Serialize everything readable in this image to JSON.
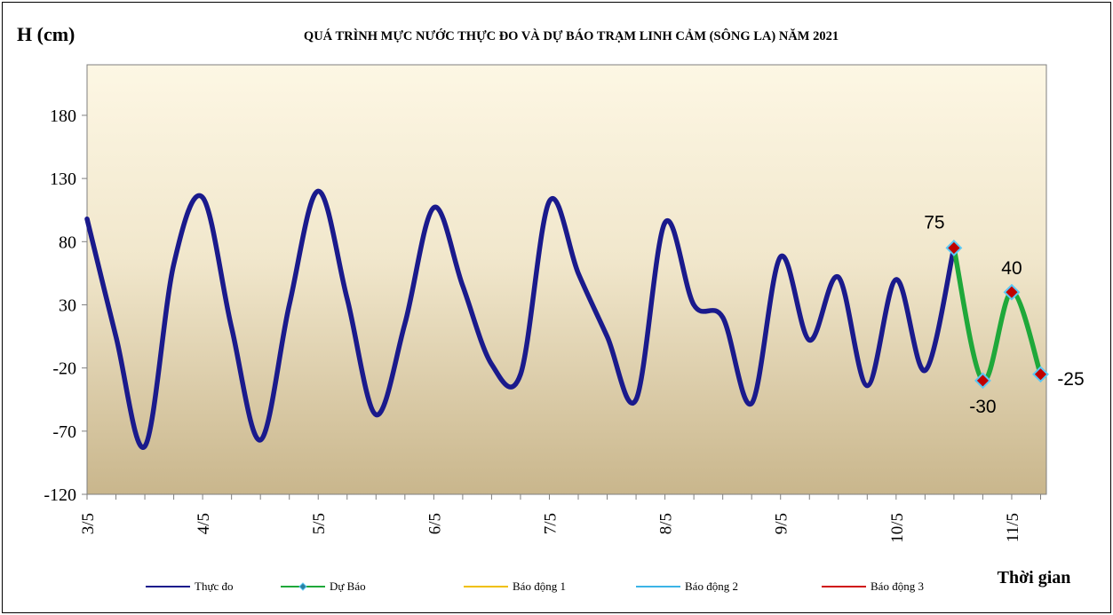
{
  "chart_data": {
    "type": "line",
    "title": "QUÁ TRÌNH  MỰC NƯỚC THỰC ĐO VÀ DỰ BÁO TRẠM  LINH  CẢM (SÔNG LA) NĂM 2021",
    "ylabel": "H (cm)",
    "xlabel": "Thời gian",
    "ylim": [
      -120,
      220
    ],
    "yticks": [
      -120,
      -70,
      -20,
      30,
      80,
      130,
      180
    ],
    "xlim": [
      3,
      11.3
    ],
    "xticks": [
      {
        "x": 3,
        "label": "3/5"
      },
      {
        "x": 4,
        "label": "4/5"
      },
      {
        "x": 5,
        "label": "5/5"
      },
      {
        "x": 6,
        "label": "6/5"
      },
      {
        "x": 7,
        "label": "7/5"
      },
      {
        "x": 8,
        "label": "8/5"
      },
      {
        "x": 9,
        "label": "9/5"
      },
      {
        "x": 10,
        "label": "10/5"
      },
      {
        "x": 11,
        "label": "11/5"
      }
    ],
    "grid": false,
    "legend_position": "bottom",
    "series": [
      {
        "name": "Thực đo",
        "color": "#1a1a8c",
        "points": [
          [
            3.0,
            98
          ],
          [
            3.25,
            5
          ],
          [
            3.5,
            -82
          ],
          [
            3.75,
            62
          ],
          [
            4.0,
            115
          ],
          [
            4.25,
            12
          ],
          [
            4.5,
            -77
          ],
          [
            4.75,
            30
          ],
          [
            5.0,
            120
          ],
          [
            5.25,
            35
          ],
          [
            5.5,
            -57
          ],
          [
            5.75,
            15
          ],
          [
            6.0,
            107
          ],
          [
            6.25,
            45
          ],
          [
            6.5,
            -17
          ],
          [
            6.75,
            -25
          ],
          [
            7.0,
            112
          ],
          [
            7.25,
            55
          ],
          [
            7.5,
            5
          ],
          [
            7.75,
            -45
          ],
          [
            8.0,
            95
          ],
          [
            8.25,
            30
          ],
          [
            8.5,
            20
          ],
          [
            8.75,
            -48
          ],
          [
            9.0,
            68
          ],
          [
            9.25,
            2
          ],
          [
            9.5,
            52
          ],
          [
            9.75,
            -34
          ],
          [
            10.0,
            50
          ],
          [
            10.25,
            -22
          ],
          [
            10.5,
            75
          ]
        ]
      },
      {
        "name": "Dự Báo",
        "color": "#1fa83a",
        "marker_color": "#c00000",
        "marker_edge": "#5bc8f5",
        "points": [
          [
            10.5,
            75
          ],
          [
            10.75,
            -30
          ],
          [
            11.0,
            40
          ],
          [
            11.25,
            -25
          ]
        ],
        "labels": [
          "75",
          "-30",
          "40",
          "-25"
        ]
      },
      {
        "name": "Báo động 1",
        "color": "#f0c000",
        "points": []
      },
      {
        "name": "Báo động 2",
        "color": "#3cb4e6",
        "points": []
      },
      {
        "name": "Báo động 3",
        "color": "#d01010",
        "points": []
      }
    ]
  }
}
